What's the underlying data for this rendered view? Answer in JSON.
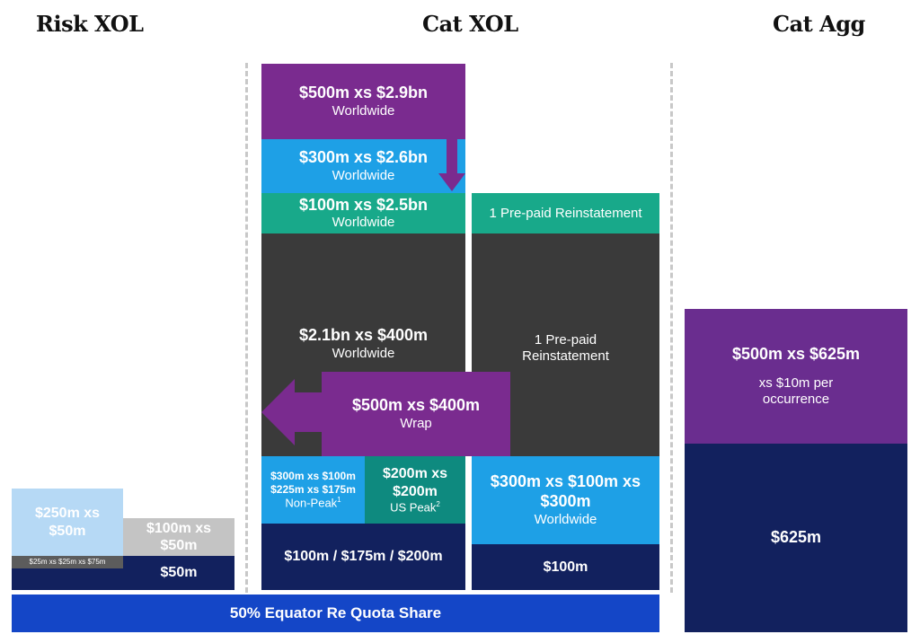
{
  "headers": {
    "risk_xol": "Risk XOL",
    "cat_xol": "Cat XOL",
    "cat_agg": "Cat Agg"
  },
  "risk_xol": {
    "layer1_title": "$250m xs $50m",
    "layer2_title": "$100m xs $50m",
    "small_note": "$25m xs $25m xs $75m",
    "retention": "$50m"
  },
  "cat_xol": {
    "top_title": "$500m xs $2.9bn",
    "top_sub": "Worldwide",
    "l2_title": "$300m xs $2.6bn",
    "l2_sub": "Worldwide",
    "l3_title": "$100m xs $2.5bn",
    "l3_sub": "Worldwide",
    "l3_reinst": "1 Pre-paid Reinstatement",
    "main_title": "$2.1bn xs $400m",
    "main_sub": "Worldwide",
    "main_reinst": "1 Pre-paid Reinstatement",
    "wrap_title": "$500m xs $400m",
    "wrap_sub": "Wrap",
    "nonpeak_line1": "$300m xs $100m",
    "nonpeak_line2": "$225m xs $175m",
    "nonpeak_sub": "Non-Peak",
    "nonpeak_sup": "1",
    "uspeak_title": "$200m xs $200m",
    "uspeak_sub": "US Peak",
    "uspeak_sup": "2",
    "ww_title": "$300m xs $100m xs $300m",
    "ww_sub": "Worldwide",
    "ret_left": "$100m / $175m / $200m",
    "ret_right": "$100m"
  },
  "quota_share": "50% Equator Re Quota Share",
  "cat_agg": {
    "title": "$500m xs $625m",
    "sub": "xs $10m per occurrence",
    "retention": "$625m"
  },
  "colors": {
    "purple": "#7a2b8f",
    "blue": "#1ea0e6",
    "teal": "#18a98a",
    "dark": "#3a3a3a",
    "navy": "#12215e",
    "quota_blue": "#1446c7"
  }
}
